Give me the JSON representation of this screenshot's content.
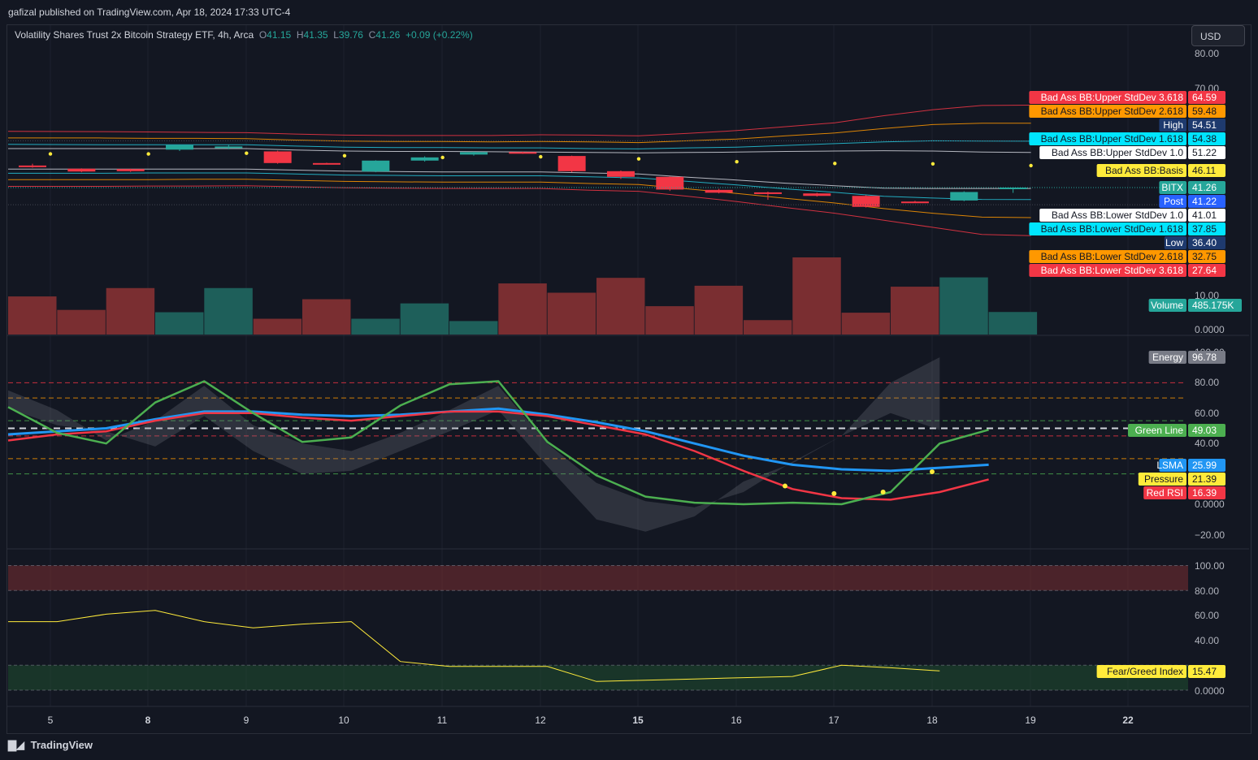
{
  "header": {
    "published": "gafizal published on TradingView.com, Apr 18, 2024 17:33 UTC-4"
  },
  "legend": {
    "symbol": "Volatility Shares Trust 2x Bitcoin Strategy ETF, 4h, Arca",
    "o_label": "O",
    "o": "41.15",
    "h_label": "H",
    "h": "41.35",
    "l_label": "L",
    "l": "39.76",
    "c_label": "C",
    "c": "41.26",
    "change": "+0.09 (+0.22%)"
  },
  "currency_button": "USD",
  "footer": {
    "brand": "TradingView",
    "logo": "tradingview-logo-icon"
  },
  "colors": {
    "up": "#26a69a",
    "down": "#f23645",
    "volUp": "#1e5f5a",
    "volDown": "#7a2e31",
    "bg": "#131722",
    "grid": "#1e222d"
  },
  "chart_data": [
    {
      "type": "candlestick",
      "title": "Volatility Shares Trust 2x Bitcoin Strategy ETF, 4h, Arca",
      "x_ticks": [
        "5",
        "8",
        "9",
        "10",
        "11",
        "12",
        "15",
        "16",
        "17",
        "18",
        "19",
        "22"
      ],
      "y_ticks": [
        "80.00",
        "70.00",
        "10.00",
        "0.0000"
      ],
      "candles": [
        {
          "o": 47.5,
          "h": 48.0,
          "l": 46.9,
          "c": 47.2
        },
        {
          "o": 46.6,
          "h": 46.7,
          "l": 45.6,
          "c": 45.8
        },
        {
          "o": 46.5,
          "h": 46.6,
          "l": 45.7,
          "c": 45.9
        },
        {
          "o": 52.0,
          "h": 53.4,
          "l": 51.6,
          "c": 53.3
        },
        {
          "o": 52.7,
          "h": 53.3,
          "l": 52.1,
          "c": 52.9
        },
        {
          "o": 51.5,
          "h": 51.7,
          "l": 48.0,
          "c": 48.2
        },
        {
          "o": 48.2,
          "h": 48.3,
          "l": 47.8,
          "c": 48.0
        },
        {
          "o": 45.8,
          "h": 49.0,
          "l": 45.6,
          "c": 48.9
        },
        {
          "o": 48.9,
          "h": 50.1,
          "l": 48.6,
          "c": 49.8
        },
        {
          "o": 50.6,
          "h": 51.4,
          "l": 50.3,
          "c": 51.3
        },
        {
          "o": 51.3,
          "h": 51.4,
          "l": 50.8,
          "c": 51.1
        },
        {
          "o": 50.2,
          "h": 50.3,
          "l": 45.6,
          "c": 45.9
        },
        {
          "o": 45.9,
          "h": 46.1,
          "l": 43.7,
          "c": 44.3
        },
        {
          "o": 44.3,
          "h": 44.4,
          "l": 40.3,
          "c": 40.7
        },
        {
          "o": 40.6,
          "h": 40.9,
          "l": 39.6,
          "c": 39.8
        },
        {
          "o": 39.9,
          "h": 40.1,
          "l": 37.8,
          "c": 39.5
        },
        {
          "o": 39.6,
          "h": 39.8,
          "l": 38.7,
          "c": 38.9
        },
        {
          "o": 38.9,
          "h": 39.1,
          "l": 35.6,
          "c": 35.8
        },
        {
          "o": 37.3,
          "h": 37.5,
          "l": 36.9,
          "c": 37.2
        },
        {
          "o": 37.6,
          "h": 40.2,
          "l": 37.4,
          "c": 40.0
        },
        {
          "o": 41.15,
          "h": 41.35,
          "l": 39.76,
          "c": 41.26
        }
      ],
      "bollinger": {
        "upper_3_618": [
          57.2,
          57.1,
          57.0,
          56.9,
          56.8,
          56.4,
          56.1,
          56.0,
          56.0,
          56.0,
          56.2,
          56.1,
          55.9,
          56.6,
          57.4,
          58.5,
          59.6,
          61.6,
          63.3,
          64.5,
          64.59
        ],
        "upper_2_618": [
          55.3,
          55.3,
          55.2,
          55.2,
          55.1,
          54.7,
          54.4,
          54.3,
          54.3,
          54.2,
          54.3,
          54.2,
          54.0,
          54.5,
          55.0,
          55.9,
          56.7,
          58.0,
          59.1,
          59.5,
          59.48
        ],
        "upper_1_618": [
          53.5,
          53.4,
          53.4,
          53.4,
          53.4,
          53.0,
          52.7,
          52.6,
          52.6,
          52.5,
          52.5,
          52.3,
          52.2,
          52.5,
          52.7,
          53.2,
          53.7,
          54.2,
          54.5,
          54.4,
          54.38
        ],
        "upper_1_0": [
          52.3,
          52.3,
          52.3,
          52.3,
          52.3,
          51.9,
          51.6,
          51.5,
          51.5,
          51.4,
          51.3,
          51.2,
          51.1,
          51.2,
          51.3,
          51.5,
          51.6,
          51.7,
          51.6,
          51.3,
          51.22
        ],
        "basis": [
          49.4,
          48.9,
          49.4,
          50.0,
          49.6,
          49.3,
          48.9,
          48.7,
          48.4,
          48.4,
          48.6,
          48.5,
          48.0,
          47.6,
          47.2,
          47.2,
          46.7,
          46.2,
          46.6,
          46.3,
          46.11
        ],
        "lower_1_0": [
          46.5,
          46.5,
          46.5,
          46.5,
          46.5,
          46.2,
          45.9,
          45.8,
          45.7,
          45.7,
          45.7,
          45.4,
          45.1,
          44.2,
          43.4,
          42.5,
          41.8,
          41.1,
          41.0,
          41.0,
          41.01
        ],
        "lower_1_618": [
          45.3,
          45.3,
          45.4,
          45.4,
          45.4,
          45.1,
          44.8,
          44.7,
          44.6,
          44.6,
          44.6,
          44.3,
          44.0,
          43.0,
          42.0,
          40.9,
          39.9,
          38.8,
          38.3,
          37.9,
          37.85
        ],
        "lower_2_618": [
          43.5,
          43.5,
          43.5,
          43.6,
          43.6,
          43.3,
          43.0,
          42.9,
          42.8,
          42.8,
          42.8,
          42.4,
          42.1,
          40.9,
          39.6,
          38.2,
          36.9,
          35.3,
          34.0,
          32.9,
          32.75
        ],
        "lower_3_618": [
          41.6,
          41.6,
          41.7,
          41.7,
          41.8,
          41.5,
          41.2,
          41.1,
          41.0,
          41.0,
          41.0,
          40.5,
          40.2,
          38.8,
          37.3,
          35.6,
          34.0,
          32.0,
          30.0,
          28.0,
          27.64
        ]
      },
      "volume_K": [
        820,
        530,
        1000,
        480,
        1000,
        340,
        760,
        340,
        670,
        290,
        1100,
        900,
        1220,
        610,
        1050,
        310,
        1660,
        470,
        1030,
        1230,
        485.175
      ],
      "price_labels": [
        {
          "name": "Bad Ass BB:Upper StdDev 3.618",
          "value": "64.59",
          "bg": "#f23645",
          "fg": "#ffffff"
        },
        {
          "name": "Bad Ass BB:Upper StdDev 2.618",
          "value": "59.48",
          "bg": "#ff9800",
          "fg": "#131722"
        },
        {
          "name": "High",
          "value": "54.51",
          "bg": "#1e3a6e",
          "fg": "#ffffff"
        },
        {
          "name": "Bad Ass BB:Upper StdDev 1.618",
          "value": "54.38",
          "bg": "#00e5ff",
          "fg": "#131722"
        },
        {
          "name": "Bad Ass BB:Upper StdDev 1.0",
          "value": "51.22",
          "bg": "#ffffff",
          "fg": "#131722"
        },
        {
          "name": "Bad Ass BB:Basis",
          "value": "46.11",
          "bg": "#ffeb3b",
          "fg": "#131722"
        },
        {
          "name": "BITX",
          "value": "41.26",
          "bg": "#26a69a",
          "fg": "#ffffff"
        },
        {
          "name": "Post",
          "value": "41.22",
          "bg": "#2962ff",
          "fg": "#ffffff"
        },
        {
          "name": "Bad Ass BB:Lower StdDev 1.0",
          "value": "41.01",
          "bg": "#ffffff",
          "fg": "#131722"
        },
        {
          "name": "Bad Ass BB:Lower StdDev 1.618",
          "value": "37.85",
          "bg": "#00e5ff",
          "fg": "#131722"
        },
        {
          "name": "Low",
          "value": "36.40",
          "bg": "#1e3a6e",
          "fg": "#ffffff"
        },
        {
          "name": "Bad Ass BB:Lower StdDev 2.618",
          "value": "32.75",
          "bg": "#ff9800",
          "fg": "#131722"
        },
        {
          "name": "Bad Ass BB:Lower StdDev 3.618",
          "value": "27.64",
          "bg": "#f23645",
          "fg": "#ffffff"
        },
        {
          "name": "Volume",
          "value": "485.175K",
          "bg": "#26a69a",
          "fg": "#ffffff"
        }
      ]
    },
    {
      "type": "line",
      "y_ticks": [
        "100.00",
        "80.00",
        "60.00",
        "40.00",
        "20.00",
        "0.0000",
        "−20.00"
      ],
      "energy": [
        75,
        62,
        42,
        55,
        78,
        52,
        40,
        35,
        47,
        62,
        78,
        40,
        14,
        2,
        -2,
        8,
        28,
        45,
        80,
        96.78
      ],
      "energy_low": [
        63,
        52,
        48,
        38,
        58,
        35,
        20,
        22,
        35,
        48,
        62,
        25,
        -10,
        -18,
        -8,
        15,
        27,
        45,
        60,
        49
      ],
      "green_line": [
        64,
        47,
        40,
        67,
        81,
        60,
        41,
        44,
        65,
        79,
        81,
        41,
        19,
        5,
        1,
        0,
        1,
        0,
        8,
        40,
        49.03
      ],
      "red_rsi": [
        42,
        46,
        48,
        55,
        60,
        60,
        57,
        55,
        58,
        61,
        61,
        58,
        52,
        46,
        35,
        22,
        10,
        4,
        3,
        8,
        16.39
      ],
      "lsma": [
        46,
        48,
        50,
        56,
        61,
        61,
        59,
        58,
        59,
        61,
        63,
        59,
        54,
        48,
        40,
        32,
        26,
        23,
        22,
        24,
        25.99
      ],
      "pressure": [
        12,
        7,
        8,
        21.39
      ],
      "reference_lines": [
        80,
        70,
        55,
        45,
        30,
        20
      ],
      "price_labels": [
        {
          "name": "Energy",
          "value": "96.78",
          "bg": "#787b86",
          "fg": "#ffffff"
        },
        {
          "name": "Green Line",
          "value": "49.03",
          "bg": "#4caf50",
          "fg": "#ffffff"
        },
        {
          "name": "LSMA",
          "value": "25.99",
          "bg": "#2196f3",
          "fg": "#ffffff"
        },
        {
          "name": "Pressure",
          "value": "21.39",
          "bg": "#ffeb3b",
          "fg": "#131722"
        },
        {
          "name": "Red RSI",
          "value": "16.39",
          "bg": "#f23645",
          "fg": "#ffffff"
        }
      ]
    },
    {
      "type": "line",
      "y_ticks": [
        "100.00",
        "80.00",
        "60.00",
        "40.00",
        "20.00",
        "0.0000"
      ],
      "fear_greed": [
        55,
        55,
        61,
        64,
        55,
        50,
        53,
        55,
        23,
        19,
        19,
        19,
        7,
        8,
        9,
        10,
        11,
        20,
        18,
        15.47
      ],
      "zones": {
        "greed": [
          80,
          100
        ],
        "fear": [
          0,
          20
        ]
      },
      "price_labels": [
        {
          "name": "Fear/Greed Index",
          "value": "15.47",
          "bg": "#ffeb3b",
          "fg": "#131722"
        }
      ]
    }
  ]
}
